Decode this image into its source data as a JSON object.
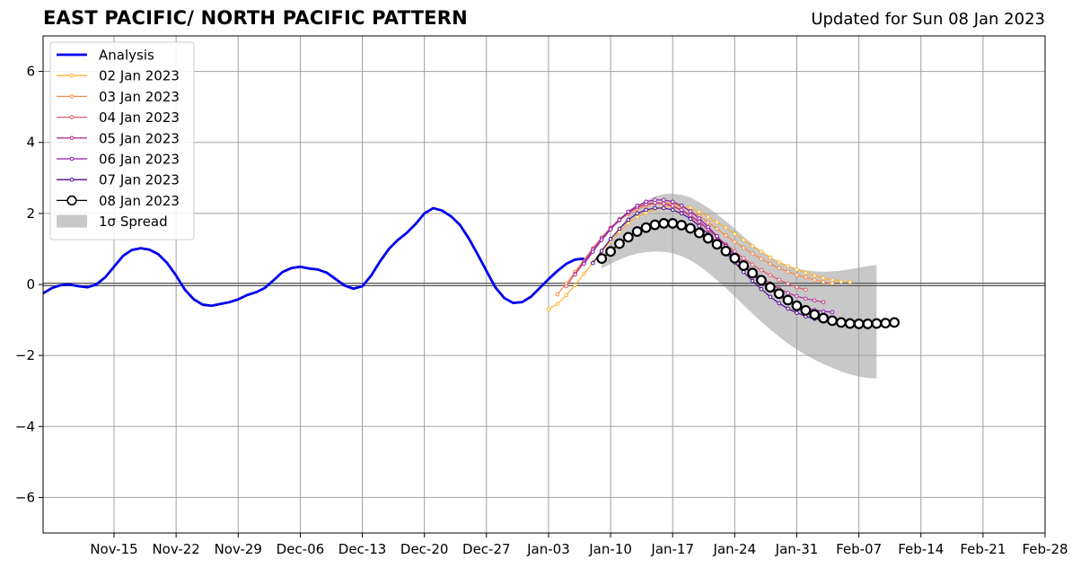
{
  "title": "EAST PACIFIC/ NORTH PACIFIC PATTERN",
  "updated": "Updated for Sun 08 Jan 2023",
  "chart_data": {
    "type": "line",
    "x_start": "2022-11-07",
    "x_end": "2023-02-28",
    "ylim": [
      -7,
      7
    ],
    "yticks": [
      {
        "value": -6,
        "label": "−6"
      },
      {
        "value": -4,
        "label": "−4"
      },
      {
        "value": -2,
        "label": "−2"
      },
      {
        "value": 0,
        "label": "0"
      },
      {
        "value": 2,
        "label": "2"
      },
      {
        "value": 4,
        "label": "4"
      },
      {
        "value": 6,
        "label": "6"
      }
    ],
    "xticks": [
      {
        "date": "2022-11-15",
        "label": "Nov-15"
      },
      {
        "date": "2022-11-22",
        "label": "Nov-22"
      },
      {
        "date": "2022-11-29",
        "label": "Nov-29"
      },
      {
        "date": "2022-12-06",
        "label": "Dec-06"
      },
      {
        "date": "2022-12-13",
        "label": "Dec-13"
      },
      {
        "date": "2022-12-20",
        "label": "Dec-20"
      },
      {
        "date": "2022-12-27",
        "label": "Dec-27"
      },
      {
        "date": "2023-01-03",
        "label": "Jan-03"
      },
      {
        "date": "2023-01-10",
        "label": "Jan-10"
      },
      {
        "date": "2023-01-17",
        "label": "Jan-17"
      },
      {
        "date": "2023-01-24",
        "label": "Jan-24"
      },
      {
        "date": "2023-01-31",
        "label": "Jan-31"
      },
      {
        "date": "2023-02-07",
        "label": "Feb-07"
      },
      {
        "date": "2023-02-14",
        "label": "Feb-14"
      },
      {
        "date": "2023-02-21",
        "label": "Feb-21"
      },
      {
        "date": "2023-02-28",
        "label": "Feb-28"
      }
    ],
    "grid": true,
    "legend_position": "top-left",
    "analysis": {
      "name": "Analysis",
      "color": "#0000ee",
      "start_date": "2022-11-07",
      "values": [
        -0.25,
        -0.1,
        -0.02,
        0.0,
        -0.05,
        -0.08,
        0.0,
        0.2,
        0.5,
        0.8,
        0.97,
        1.02,
        0.98,
        0.85,
        0.6,
        0.25,
        -0.15,
        -0.42,
        -0.57,
        -0.6,
        -0.55,
        -0.5,
        -0.42,
        -0.3,
        -0.22,
        -0.1,
        0.12,
        0.35,
        0.46,
        0.5,
        0.45,
        0.42,
        0.33,
        0.15,
        -0.03,
        -0.12,
        -0.05,
        0.25,
        0.65,
        1.0,
        1.25,
        1.45,
        1.7,
        2.0,
        2.15,
        2.08,
        1.92,
        1.68,
        1.3,
        0.85,
        0.38,
        -0.08,
        -0.38,
        -0.52,
        -0.5,
        -0.35,
        -0.1,
        0.15,
        0.38,
        0.58,
        0.7,
        0.73
      ]
    },
    "forecasts": [
      {
        "name": "02 Jan 2023",
        "color": "#f9b233",
        "start_date": "2023-01-03",
        "values": [
          -0.7,
          -0.55,
          -0.3,
          -0.02,
          0.3,
          0.62,
          0.92,
          1.22,
          1.48,
          1.72,
          1.9,
          2.02,
          2.12,
          2.18,
          2.2,
          2.2,
          2.15,
          2.05,
          1.9,
          1.75,
          1.6,
          1.42,
          1.25,
          1.08,
          0.92,
          0.76,
          0.62,
          0.52,
          0.42,
          0.33,
          0.25,
          0.18,
          0.12,
          0.08,
          0.07
        ]
      },
      {
        "name": "03 Jan 2023",
        "color": "#f58a4b",
        "start_date": "2023-01-04",
        "values": [
          -0.28,
          0.02,
          0.35,
          0.7,
          1.02,
          1.32,
          1.58,
          1.8,
          1.98,
          2.12,
          2.22,
          2.28,
          2.3,
          2.28,
          2.2,
          2.07,
          1.92,
          1.75,
          1.57,
          1.38,
          1.2,
          1.03,
          0.87,
          0.72,
          0.58,
          0.46,
          0.36,
          0.27,
          0.2,
          0.13,
          0.07,
          0.03
        ]
      },
      {
        "name": "04 Jan 2023",
        "color": "#de5a6e",
        "start_date": "2023-01-05",
        "values": [
          -0.05,
          0.3,
          0.66,
          1.0,
          1.32,
          1.6,
          1.84,
          2.03,
          2.18,
          2.27,
          2.3,
          2.27,
          2.2,
          2.08,
          1.92,
          1.74,
          1.54,
          1.34,
          1.13,
          0.93,
          0.74,
          0.56,
          0.4,
          0.26,
          0.13,
          0.02,
          -0.08,
          -0.15
        ]
      },
      {
        "name": "05 Jan 2023",
        "color": "#b8338f",
        "start_date": "2023-01-06",
        "values": [
          0.28,
          0.62,
          0.98,
          1.3,
          1.58,
          1.82,
          2.02,
          2.17,
          2.26,
          2.3,
          2.28,
          2.21,
          2.1,
          1.95,
          1.77,
          1.56,
          1.34,
          1.1,
          0.86,
          0.62,
          0.4,
          0.2,
          0.03,
          -0.12,
          -0.24,
          -0.33,
          -0.4,
          -0.45,
          -0.5
        ]
      },
      {
        "name": "06 Jan 2023",
        "color": "#8b1aac",
        "start_date": "2023-01-07",
        "values": [
          0.58,
          0.92,
          1.25,
          1.55,
          1.82,
          2.05,
          2.22,
          2.33,
          2.38,
          2.38,
          2.33,
          2.22,
          2.06,
          1.86,
          1.62,
          1.36,
          1.08,
          0.8,
          0.52,
          0.27,
          0.05,
          -0.15,
          -0.32,
          -0.47,
          -0.58,
          -0.66,
          -0.72,
          -0.76,
          -0.78
        ]
      },
      {
        "name": "07 Jan 2023",
        "color": "#4d0c8f",
        "start_date": "2023-01-08",
        "values": [
          0.6,
          0.95,
          1.28,
          1.57,
          1.82,
          2.0,
          2.1,
          2.15,
          2.15,
          2.1,
          2.0,
          1.85,
          1.65,
          1.42,
          1.17,
          0.9,
          0.62,
          0.35,
          0.1,
          -0.13,
          -0.35,
          -0.53,
          -0.68,
          -0.8,
          -0.9,
          -0.97,
          -1.0,
          -1.02,
          -1.02,
          -1.01
        ]
      },
      {
        "name": "08 Jan 2023",
        "color": "#000000",
        "start_date": "2023-01-09",
        "values": [
          0.73,
          0.93,
          1.15,
          1.33,
          1.49,
          1.6,
          1.68,
          1.72,
          1.72,
          1.67,
          1.58,
          1.45,
          1.3,
          1.13,
          0.94,
          0.74,
          0.53,
          0.32,
          0.12,
          -0.08,
          -0.26,
          -0.44,
          -0.6,
          -0.73,
          -0.85,
          -0.95,
          -1.02,
          -1.07,
          -1.1,
          -1.11,
          -1.11,
          -1.1,
          -1.09,
          -1.07
        ]
      }
    ],
    "spread": {
      "name": "1σ Spread",
      "color": "#c8c8c8",
      "start_date": "2023-01-09",
      "upper": [
        0.75,
        1.2,
        1.6,
        1.92,
        2.18,
        2.36,
        2.48,
        2.55,
        2.56,
        2.52,
        2.45,
        2.32,
        2.16,
        1.98,
        1.78,
        1.57,
        1.35,
        1.14,
        0.94,
        0.77,
        0.63,
        0.53,
        0.45,
        0.4,
        0.37,
        0.36,
        0.37,
        0.39,
        0.43,
        0.47,
        0.52,
        0.55
      ],
      "lower": [
        0.45,
        0.58,
        0.7,
        0.8,
        0.87,
        0.91,
        0.93,
        0.92,
        0.88,
        0.8,
        0.68,
        0.52,
        0.33,
        0.12,
        -0.1,
        -0.34,
        -0.58,
        -0.82,
        -1.05,
        -1.27,
        -1.47,
        -1.66,
        -1.83,
        -1.98,
        -2.12,
        -2.24,
        -2.35,
        -2.45,
        -2.53,
        -2.59,
        -2.63,
        -2.65
      ]
    }
  }
}
